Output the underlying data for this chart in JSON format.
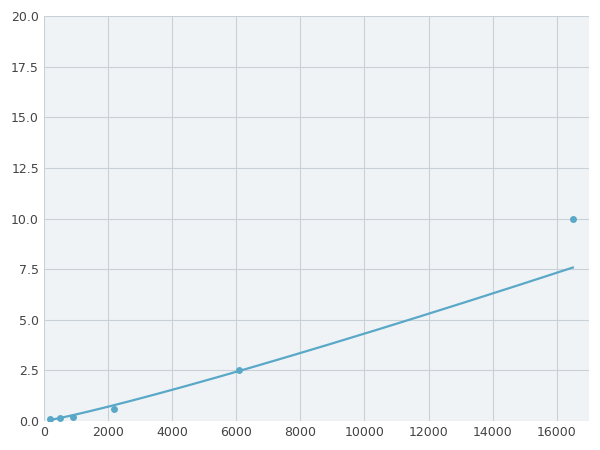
{
  "x_points": [
    200,
    500,
    900,
    2200,
    6100,
    16500
  ],
  "y_points": [
    0.08,
    0.14,
    0.2,
    0.6,
    2.5,
    10.0
  ],
  "line_color": "#5aa8c8",
  "marker_color": "#5aa8c8",
  "marker_size": 5,
  "linewidth": 1.6,
  "xlim": [
    0,
    17000
  ],
  "ylim": [
    0,
    20.0
  ],
  "xticks": [
    0,
    2000,
    4000,
    6000,
    8000,
    10000,
    12000,
    14000,
    16000
  ],
  "yticks": [
    0.0,
    2.5,
    5.0,
    7.5,
    10.0,
    12.5,
    15.0,
    17.5,
    20.0
  ],
  "grid_color": "#c8d0d8",
  "background_color": "#f0f3f6",
  "fig_background": "#ffffff"
}
